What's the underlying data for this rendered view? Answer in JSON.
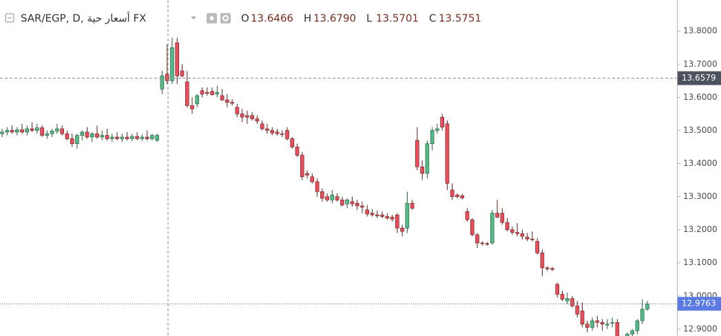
{
  "chart_data": {
    "type": "candlestick",
    "title": "SAR/EGP, D, أسعار حية FX",
    "legend": {
      "labels": [
        "O",
        "H",
        "L",
        "C"
      ],
      "values": [
        13.6466,
        13.679,
        13.5701,
        13.5751
      ],
      "value_labels": [
        "13.6466",
        "13.6790",
        "13.5701",
        "13.5751"
      ]
    },
    "up_color": "#53b987",
    "down_color": "#eb4d5c",
    "ylim": [
      12.879,
      13.894
    ],
    "yticks": [
      {
        "value": 13.8,
        "label": "13.8000"
      },
      {
        "value": 13.7,
        "label": "13.7000"
      },
      {
        "value": 13.6,
        "label": "13.6000"
      },
      {
        "value": 13.5,
        "label": "13.5000"
      },
      {
        "value": 13.4,
        "label": "13.4000"
      },
      {
        "value": 13.3,
        "label": "13.3000"
      },
      {
        "value": 13.2,
        "label": "13.2000"
      },
      {
        "value": 13.1,
        "label": "13.1000"
      },
      {
        "value": 13.0,
        "label": "13.0000"
      },
      {
        "value": 12.9,
        "label": "12.9000"
      }
    ],
    "crosshair": {
      "value": 13.6579,
      "label": "13.6579"
    },
    "last_price": {
      "value": 12.9763,
      "label": "12.9763"
    },
    "ohlc": [
      [
        13.49,
        13.505,
        13.48,
        13.495
      ],
      [
        13.495,
        13.51,
        13.485,
        13.5
      ],
      [
        13.5,
        13.515,
        13.49,
        13.495
      ],
      [
        13.495,
        13.51,
        13.485,
        13.502
      ],
      [
        13.502,
        13.52,
        13.49,
        13.495
      ],
      [
        13.495,
        13.515,
        13.485,
        13.505
      ],
      [
        13.505,
        13.525,
        13.495,
        13.5
      ],
      [
        13.5,
        13.52,
        13.49,
        13.508
      ],
      [
        13.508,
        13.515,
        13.48,
        13.485
      ],
      [
        13.485,
        13.5,
        13.475,
        13.49
      ],
      [
        13.49,
        13.505,
        13.48,
        13.498
      ],
      [
        13.498,
        13.52,
        13.49,
        13.505
      ],
      [
        13.505,
        13.515,
        13.485,
        13.49
      ],
      [
        13.49,
        13.5,
        13.47,
        13.475
      ],
      [
        13.475,
        13.49,
        13.45,
        13.46
      ],
      [
        13.46,
        13.49,
        13.445,
        13.485
      ],
      [
        13.485,
        13.5,
        13.47,
        13.495
      ],
      [
        13.495,
        13.51,
        13.475,
        13.48
      ],
      [
        13.48,
        13.495,
        13.465,
        13.49
      ],
      [
        13.49,
        13.515,
        13.475,
        13.48
      ],
      [
        13.48,
        13.5,
        13.47,
        13.485
      ],
      [
        13.485,
        13.505,
        13.47,
        13.475
      ],
      [
        13.475,
        13.49,
        13.465,
        13.48
      ],
      [
        13.48,
        13.495,
        13.47,
        13.475
      ],
      [
        13.475,
        13.49,
        13.465,
        13.48
      ],
      [
        13.48,
        13.495,
        13.47,
        13.475
      ],
      [
        13.475,
        13.49,
        13.468,
        13.482
      ],
      [
        13.482,
        13.495,
        13.47,
        13.475
      ],
      [
        13.475,
        13.488,
        13.468,
        13.48
      ],
      [
        13.48,
        13.5,
        13.47,
        13.475
      ],
      [
        13.475,
        13.49,
        13.47,
        13.485
      ],
      [
        13.47,
        13.49,
        13.465,
        13.485
      ],
      [
        13.625,
        13.68,
        13.61,
        13.665
      ],
      [
        13.67,
        13.76,
        13.64,
        13.65
      ],
      [
        13.65,
        13.78,
        13.64,
        13.75
      ],
      [
        13.765,
        13.78,
        13.64,
        13.665
      ],
      [
        13.68,
        13.7,
        13.66,
        13.665
      ],
      [
        13.6466,
        13.679,
        13.5701,
        13.5751
      ],
      [
        13.575,
        13.6,
        13.55,
        13.565
      ],
      [
        13.58,
        13.61,
        13.57,
        13.605
      ],
      [
        13.62,
        13.63,
        13.6,
        13.61
      ],
      [
        13.615,
        13.63,
        13.605,
        13.612
      ],
      [
        13.618,
        13.63,
        13.605,
        13.608
      ],
      [
        13.61,
        13.635,
        13.6,
        13.615
      ],
      [
        13.605,
        13.625,
        13.59,
        13.592
      ],
      [
        13.592,
        13.61,
        13.57,
        13.585
      ],
      [
        13.585,
        13.595,
        13.575,
        13.582
      ],
      [
        13.57,
        13.58,
        13.54,
        13.55
      ],
      [
        13.55,
        13.565,
        13.525,
        13.54
      ],
      [
        13.545,
        13.56,
        13.52,
        13.54
      ],
      [
        13.545,
        13.555,
        13.53,
        13.535
      ],
      [
        13.535,
        13.545,
        13.52,
        13.528
      ],
      [
        13.52,
        13.53,
        13.5,
        13.505
      ],
      [
        13.505,
        13.52,
        13.49,
        13.5
      ],
      [
        13.5,
        13.51,
        13.485,
        13.492
      ],
      [
        13.495,
        13.505,
        13.485,
        13.49
      ],
      [
        13.49,
        13.5,
        13.48,
        13.488
      ],
      [
        13.5,
        13.51,
        13.47,
        13.475
      ],
      [
        13.475,
        13.48,
        13.445,
        13.45
      ],
      [
        13.45,
        13.46,
        13.42,
        13.425
      ],
      [
        13.425,
        13.435,
        13.35,
        13.36
      ],
      [
        13.37,
        13.38,
        13.355,
        13.365
      ],
      [
        13.36,
        13.37,
        13.34,
        13.345
      ],
      [
        13.345,
        13.355,
        13.3,
        13.315
      ],
      [
        13.315,
        13.325,
        13.285,
        13.295
      ],
      [
        13.3,
        13.31,
        13.285,
        13.29
      ],
      [
        13.29,
        13.32,
        13.28,
        13.305
      ],
      [
        13.3,
        13.31,
        13.285,
        13.29
      ],
      [
        13.29,
        13.3,
        13.27,
        13.275
      ],
      [
        13.278,
        13.295,
        13.265,
        13.29
      ],
      [
        13.285,
        13.3,
        13.27,
        13.278
      ],
      [
        13.28,
        13.29,
        13.26,
        13.272
      ],
      [
        13.272,
        13.285,
        13.25,
        13.268
      ],
      [
        13.26,
        13.275,
        13.24,
        13.248
      ],
      [
        13.25,
        13.262,
        13.24,
        13.245
      ],
      [
        13.245,
        13.258,
        13.235,
        13.242
      ],
      [
        13.245,
        13.255,
        13.235,
        13.24
      ],
      [
        13.24,
        13.25,
        13.23,
        13.235
      ],
      [
        13.238,
        13.245,
        13.225,
        13.232
      ],
      [
        13.245,
        13.25,
        13.19,
        13.205
      ],
      [
        13.205,
        13.215,
        13.18,
        13.195
      ],
      [
        13.205,
        13.315,
        13.19,
        13.28
      ],
      [
        13.28,
        13.29,
        13.26,
        13.265
      ],
      [
        13.47,
        13.51,
        13.38,
        13.39
      ],
      [
        13.39,
        13.41,
        13.35,
        13.37
      ],
      [
        13.37,
        13.47,
        13.355,
        13.46
      ],
      [
        13.46,
        13.51,
        13.44,
        13.5
      ],
      [
        13.5,
        13.52,
        13.49,
        13.505
      ],
      [
        13.54,
        13.55,
        13.5,
        13.51
      ],
      [
        13.52,
        13.53,
        13.32,
        13.34
      ],
      [
        13.32,
        13.34,
        13.29,
        13.3
      ],
      [
        13.305,
        13.31,
        13.295,
        13.3
      ],
      [
        13.303,
        13.308,
        13.292,
        13.296
      ],
      [
        13.255,
        13.265,
        13.225,
        13.23
      ],
      [
        13.23,
        13.235,
        13.18,
        13.185
      ],
      [
        13.185,
        13.19,
        13.145,
        13.16
      ],
      [
        13.16,
        13.165,
        13.152,
        13.158
      ],
      [
        13.158,
        13.163,
        13.152,
        13.156
      ],
      [
        13.16,
        13.26,
        13.155,
        13.25
      ],
      [
        13.25,
        13.29,
        13.235,
        13.238
      ],
      [
        13.25,
        13.265,
        13.215,
        13.222
      ],
      [
        13.222,
        13.235,
        13.195,
        13.2
      ],
      [
        13.2,
        13.21,
        13.185,
        13.192
      ],
      [
        13.192,
        13.22,
        13.18,
        13.188
      ],
      [
        13.188,
        13.2,
        13.17,
        13.18
      ],
      [
        13.178,
        13.19,
        13.165,
        13.172
      ],
      [
        13.172,
        13.195,
        13.165,
        13.17
      ],
      [
        13.165,
        13.175,
        13.125,
        13.13
      ],
      [
        13.13,
        13.14,
        13.06,
        13.085
      ],
      [
        13.085,
        13.09,
        13.075,
        13.082
      ],
      [
        13.083,
        13.088,
        13.075,
        13.08
      ],
      [
        13.035,
        13.04,
        12.995,
        13.005
      ],
      [
        13.005,
        13.015,
        12.985,
        12.99
      ],
      [
        12.985,
        13.01,
        12.975,
        12.992
      ],
      [
        12.992,
        13.0,
        12.965,
        12.97
      ],
      [
        12.97,
        12.985,
        12.935,
        12.945
      ],
      [
        12.955,
        12.98,
        12.905,
        12.915
      ],
      [
        12.915,
        12.925,
        12.89,
        12.905
      ],
      [
        12.905,
        12.935,
        12.895,
        12.925
      ],
      [
        12.925,
        12.94,
        12.905,
        12.92
      ],
      [
        12.92,
        12.93,
        12.895,
        12.915
      ],
      [
        12.912,
        12.93,
        12.9,
        12.915
      ],
      [
        12.918,
        12.935,
        12.905,
        12.92
      ],
      [
        12.92,
        12.93,
        12.86,
        12.87
      ],
      [
        12.87,
        12.88,
        12.85,
        12.86
      ],
      [
        12.87,
        12.89,
        12.855,
        12.885
      ],
      [
        12.885,
        12.9,
        12.87,
        12.895
      ],
      [
        12.895,
        12.93,
        12.885,
        12.925
      ],
      [
        12.925,
        12.99,
        12.915,
        12.96
      ],
      [
        12.96,
        12.985,
        12.955,
        12.976
      ]
    ]
  }
}
